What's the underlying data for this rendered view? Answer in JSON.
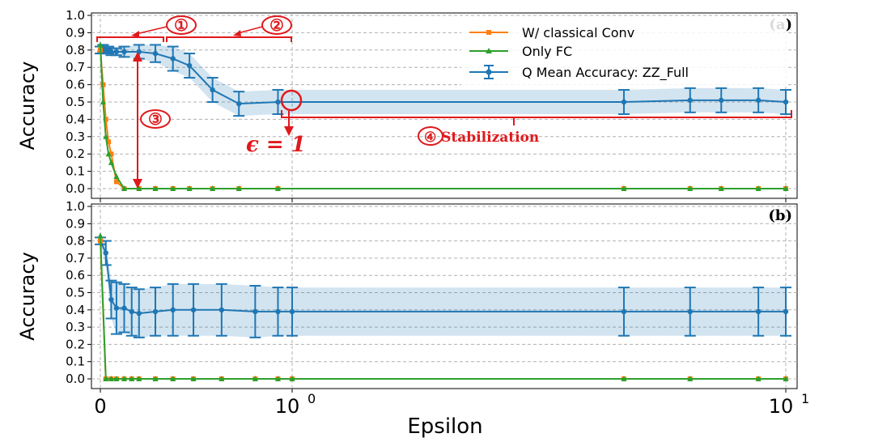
{
  "chart_data": [
    {
      "panel": "(a)",
      "type": "line",
      "ylabel": "Accuracy",
      "xlabel": "",
      "ylim": [
        0.0,
        1.0
      ],
      "yticks": [
        "0.0",
        "0.1",
        "0.2",
        "0.3",
        "0.4",
        "0.5",
        "0.6",
        "0.7",
        "0.8",
        "0.9",
        "1.0"
      ],
      "grid": true,
      "legend_position": "top-right",
      "series": [
        {
          "name": "W/ classical Conv",
          "color": "#ff7f0e",
          "marker": "square",
          "x": [
            0.0,
            0.01,
            0.02,
            0.03,
            0.04,
            0.06,
            0.09,
            0.15,
            0.22,
            0.3,
            0.38,
            0.5,
            0.65,
            0.9,
            4.7,
            6.4,
            7.4,
            8.8,
            10.0
          ],
          "y": [
            0.8,
            0.6,
            0.4,
            0.27,
            0.2,
            0.04,
            0.0,
            0.0,
            0.0,
            0.0,
            0.0,
            0.0,
            0.0,
            0.0,
            0.0,
            0.0,
            0.0,
            0.0,
            0.0
          ]
        },
        {
          "name": "Only FC",
          "color": "#2ca02c",
          "marker": "triangle",
          "x": [
            0.0,
            0.01,
            0.02,
            0.03,
            0.04,
            0.06,
            0.09,
            0.15,
            0.22,
            0.3,
            0.38,
            0.5,
            0.65,
            0.9,
            4.7,
            6.4,
            7.4,
            8.8,
            10.0
          ],
          "y": [
            0.83,
            0.5,
            0.3,
            0.2,
            0.15,
            0.07,
            0.0,
            0.0,
            0.0,
            0.0,
            0.0,
            0.0,
            0.0,
            0.0,
            0.0,
            0.0,
            0.0,
            0.0,
            0.0
          ]
        },
        {
          "name": "Q Mean Accuracy: ZZ_Full",
          "color": "#1f77b4",
          "marker": "circle",
          "error_bars": true,
          "x": [
            0.0,
            0.005,
            0.01,
            0.02,
            0.03,
            0.04,
            0.06,
            0.09,
            0.15,
            0.22,
            0.3,
            0.38,
            0.5,
            0.65,
            0.9,
            4.7,
            6.4,
            7.4,
            8.8,
            10.0
          ],
          "y": [
            0.8,
            0.8,
            0.81,
            0.8,
            0.8,
            0.79,
            0.79,
            0.79,
            0.79,
            0.78,
            0.75,
            0.71,
            0.57,
            0.49,
            0.5,
            0.5,
            0.51,
            0.51,
            0.51,
            0.5
          ],
          "err": [
            0.02,
            0.02,
            0.02,
            0.02,
            0.02,
            0.02,
            0.02,
            0.03,
            0.04,
            0.05,
            0.07,
            0.07,
            0.07,
            0.07,
            0.07,
            0.07,
            0.07,
            0.07,
            0.07,
            0.07
          ]
        }
      ],
      "annotations": [
        "①",
        "②",
        "③",
        "④ Stabilization",
        "ϵ = 1"
      ]
    },
    {
      "panel": "(b)",
      "type": "line",
      "ylabel": "Accuracy",
      "xlabel": "Epsilon",
      "ylim": [
        0.0,
        1.0
      ],
      "yticks": [
        "0.0",
        "0.1",
        "0.2",
        "0.3",
        "0.4",
        "0.5",
        "0.6",
        "0.7",
        "0.8",
        "0.9",
        "1.0"
      ],
      "xticks": [
        {
          "value": 0,
          "label": "0"
        },
        {
          "value": 1,
          "label": "10",
          "sup": "0"
        },
        {
          "value": 10,
          "label": "10",
          "sup": "1"
        }
      ],
      "grid": true,
      "series": [
        {
          "name": "W/ classical Conv",
          "color": "#ff7f0e",
          "marker": "square",
          "x": [
            0.0,
            0.02,
            0.04,
            0.06,
            0.09,
            0.12,
            0.15,
            0.22,
            0.3,
            0.4,
            0.55,
            0.75,
            0.9,
            1.0,
            4.7,
            6.4,
            8.8,
            10.0
          ],
          "y": [
            0.8,
            0.0,
            0.0,
            0.0,
            0.0,
            0.0,
            0.0,
            0.0,
            0.0,
            0.0,
            0.0,
            0.0,
            0.0,
            0.0,
            0.0,
            0.0,
            0.0,
            0.0
          ]
        },
        {
          "name": "Only FC",
          "color": "#2ca02c",
          "marker": "triangle",
          "x": [
            0.0,
            0.02,
            0.04,
            0.06,
            0.09,
            0.12,
            0.15,
            0.22,
            0.3,
            0.4,
            0.55,
            0.75,
            0.9,
            1.0,
            4.7,
            6.4,
            8.8,
            10.0
          ],
          "y": [
            0.83,
            0.0,
            0.0,
            0.0,
            0.0,
            0.0,
            0.0,
            0.0,
            0.0,
            0.0,
            0.0,
            0.0,
            0.0,
            0.0,
            0.0,
            0.0,
            0.0,
            0.0
          ]
        },
        {
          "name": "Q Mean Accuracy: ZZ_Full",
          "color": "#1f77b4",
          "marker": "circle",
          "error_bars": true,
          "x": [
            0.0,
            0.02,
            0.04,
            0.06,
            0.09,
            0.12,
            0.15,
            0.22,
            0.3,
            0.4,
            0.55,
            0.75,
            0.9,
            1.0,
            4.7,
            6.4,
            8.8,
            10.0
          ],
          "y": [
            0.8,
            0.73,
            0.46,
            0.41,
            0.41,
            0.39,
            0.38,
            0.39,
            0.4,
            0.4,
            0.4,
            0.39,
            0.39,
            0.39,
            0.39,
            0.39,
            0.39,
            0.39
          ],
          "err": [
            0.02,
            0.07,
            0.11,
            0.15,
            0.14,
            0.14,
            0.14,
            0.14,
            0.15,
            0.15,
            0.15,
            0.15,
            0.14,
            0.14,
            0.14,
            0.14,
            0.14,
            0.14
          ]
        }
      ]
    }
  ]
}
